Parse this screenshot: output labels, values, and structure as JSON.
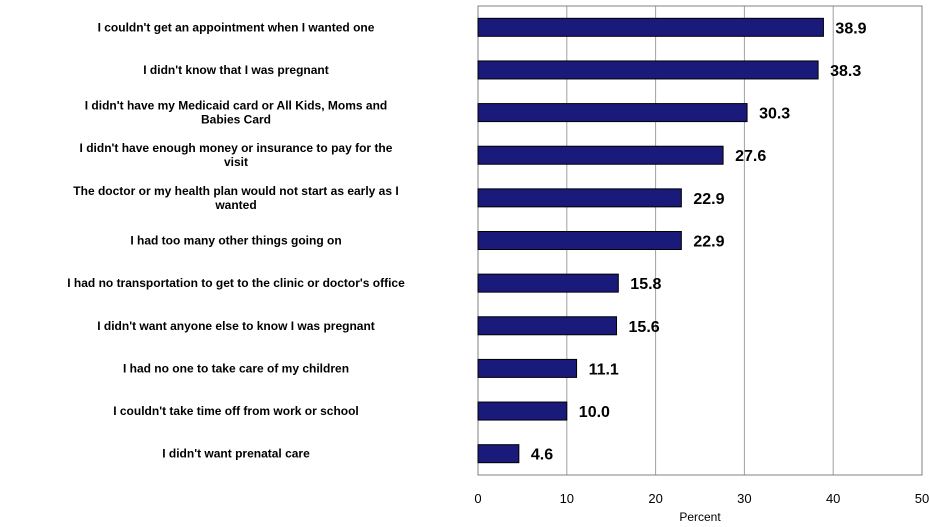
{
  "chart_data": {
    "type": "bar",
    "orientation": "horizontal",
    "categories": [
      [
        "I couldn't get an appointment when I wanted one"
      ],
      [
        "I didn't know that I was pregnant"
      ],
      [
        "I didn't have my Medicaid card or All Kids, Moms and",
        "Babies Card"
      ],
      [
        "I didn't have enough money or insurance to pay for the",
        "visit"
      ],
      [
        "The doctor or my health plan would not start as early as I",
        "wanted"
      ],
      [
        "I had too many other things going on"
      ],
      [
        "I had no transportation to get to the clinic or doctor's office"
      ],
      [
        "I didn't want anyone else to know I was pregnant"
      ],
      [
        "I had no one to take care of my children"
      ],
      [
        "I couldn't take time off from work or school"
      ],
      [
        "I didn't want prenatal care"
      ]
    ],
    "values": [
      38.9,
      38.3,
      30.3,
      27.6,
      22.9,
      22.9,
      15.8,
      15.6,
      11.1,
      10.0,
      4.6
    ],
    "value_labels": [
      "38.9",
      "38.3",
      "30.3",
      "27.6",
      "22.9",
      "22.9",
      "15.8",
      "15.6",
      "11.1",
      "10.0",
      "4.6"
    ],
    "xlabel": "Percent",
    "xlim": [
      0,
      50
    ],
    "xticks": [
      0,
      10,
      20,
      30,
      40,
      50
    ],
    "grid": true,
    "bar_color": "#1a1a7a",
    "grid_color": "#a0a0a0"
  }
}
